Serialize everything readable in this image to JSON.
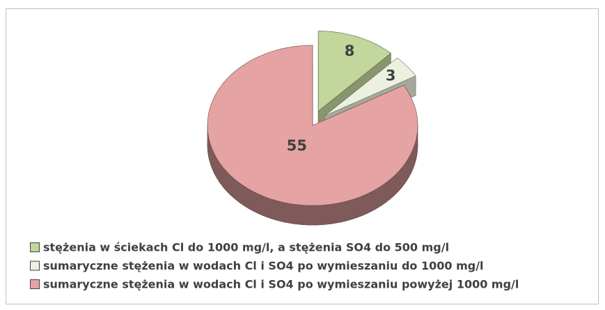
{
  "chart_data": {
    "type": "pie",
    "categories": [
      "stężenia w ściekach Cl do 1000 mg/l, a stężenia SO4 do 500 mg/l",
      "sumaryczne stężenia w wodach Cl i SO4 po wymieszaniu do 1000 mg/l",
      "sumaryczne stężenia w wodach Cl i SO4 po wymieszaniu powyżej 1000 mg/l"
    ],
    "values": [
      8,
      3,
      55
    ],
    "colors": [
      "#c3d69b",
      "#ebf1de",
      "#e6a3a3"
    ]
  }
}
